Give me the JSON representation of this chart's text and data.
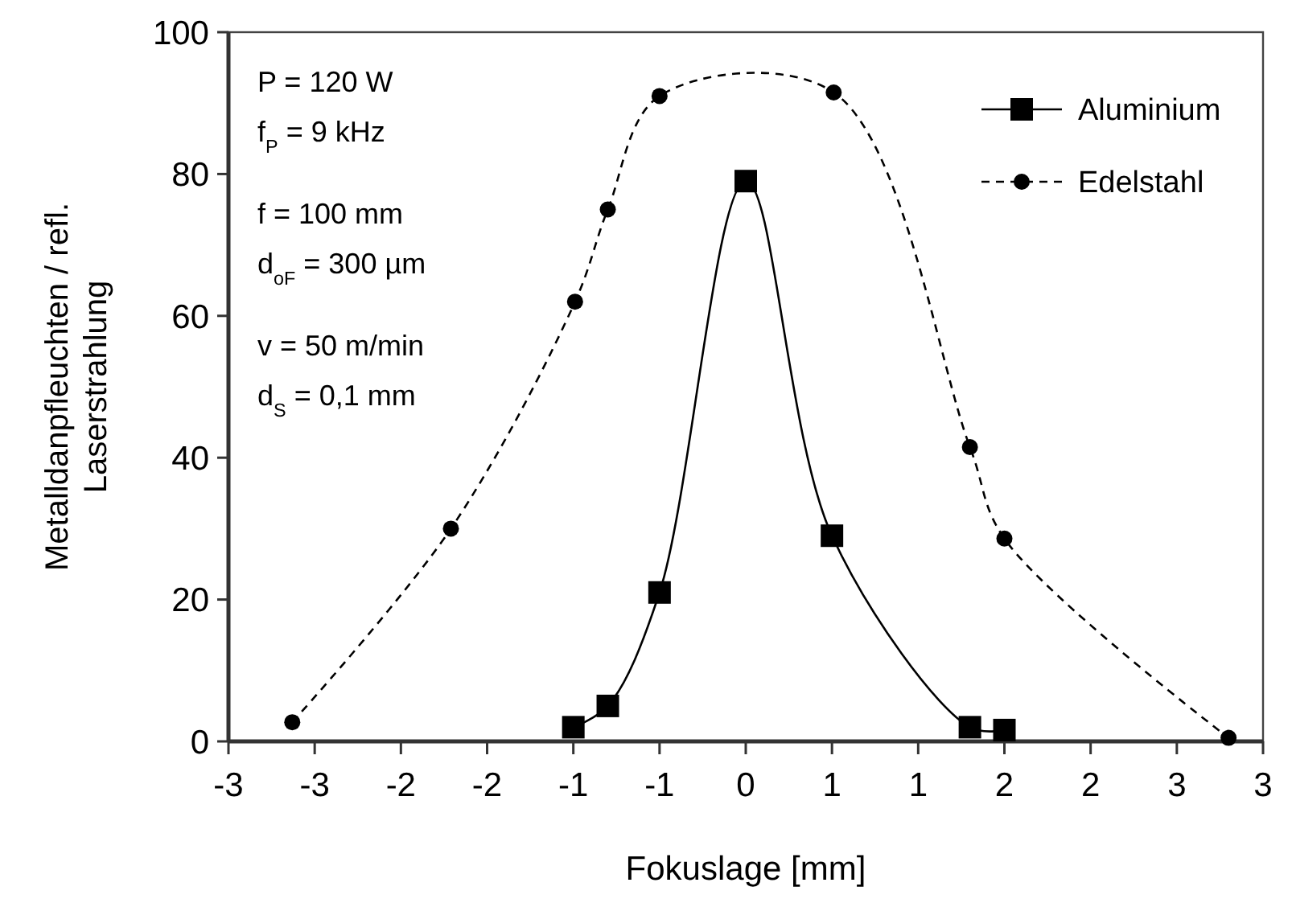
{
  "chart_data": {
    "type": "line",
    "xlabel": "Fokuslage [mm]",
    "ylabel": "Metalldanpfleuchten / refl. Laserstrahlung",
    "xlim": [
      -3,
      3
    ],
    "ylim": [
      0,
      100
    ],
    "xticks": [
      {
        "value": -3,
        "label": "-3"
      },
      {
        "value": -2.5,
        "label": "-3"
      },
      {
        "value": -2,
        "label": "-2"
      },
      {
        "value": -1.5,
        "label": "-2"
      },
      {
        "value": -1,
        "label": "-1"
      },
      {
        "value": -0.5,
        "label": "-1"
      },
      {
        "value": 0,
        "label": "0"
      },
      {
        "value": 0.5,
        "label": "1"
      },
      {
        "value": 1,
        "label": "1"
      },
      {
        "value": 1.5,
        "label": "2"
      },
      {
        "value": 2,
        "label": "2"
      },
      {
        "value": 2.5,
        "label": "3"
      },
      {
        "value": 3,
        "label": "3"
      }
    ],
    "yticks": [
      0,
      20,
      40,
      60,
      80,
      100
    ],
    "grid": false,
    "legend": "top right",
    "annotations": [
      "P = 120 W",
      "f$_{P}$ = 9 kHz",
      "f = 100 mm",
      "d$_{oF}$ = 300 µm",
      "v = 50 m/min",
      "d$_{S}$ = 0,1 mm"
    ],
    "series": [
      {
        "name": "Aluminium",
        "color": "#000000",
        "marker": "square",
        "line_style": "solid",
        "x": [
          -1,
          -0.8,
          -0.5,
          0,
          0.5,
          1.3,
          1.5
        ],
        "values": [
          2,
          5,
          21,
          79,
          29,
          2,
          1.6
        ]
      },
      {
        "name": "Edelstahl",
        "color": "#000000",
        "marker": "circle",
        "line_style": "dashed",
        "x": [
          -2.63,
          -1.71,
          -0.99,
          -0.8,
          -0.5,
          0.51,
          1.3,
          1.5,
          2.8
        ],
        "values": [
          2.7,
          30,
          62,
          75,
          91,
          91.5,
          41.5,
          28.6,
          0.5
        ]
      }
    ]
  }
}
